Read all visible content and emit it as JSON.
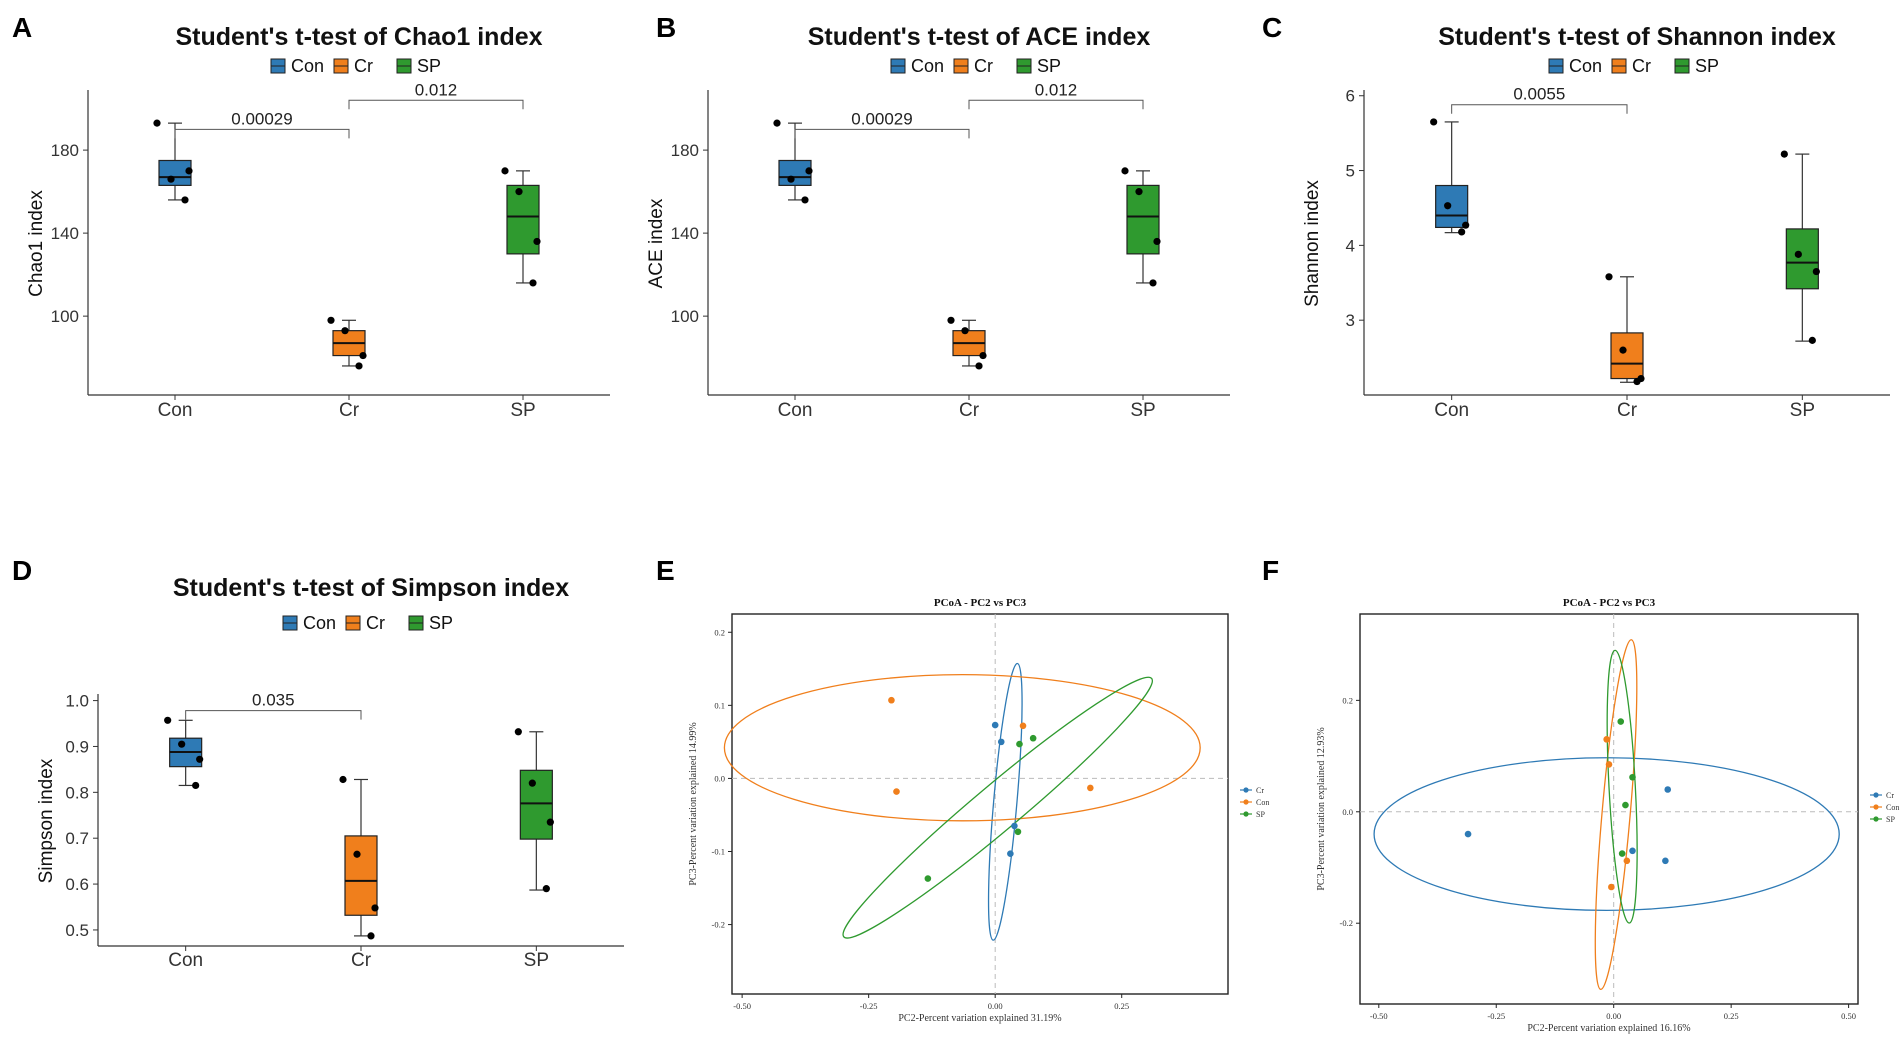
{
  "colors": {
    "Con": "#2e7ab5",
    "Cr": "#f07f1c",
    "SP": "#2f9a2f",
    "axis": "#333333",
    "dash": "#bbbbbb"
  },
  "chart_data": [
    {
      "type": "box",
      "panel": "A",
      "title": "Student's t-test of Chao1 index",
      "ylabel": "Chao1 index",
      "xlabel": "",
      "ylim": [
        62,
        208
      ],
      "yticks": [
        100,
        140,
        180
      ],
      "categories": [
        "Con",
        "Cr",
        "SP"
      ],
      "legend": [
        "Con",
        "Cr",
        "SP"
      ],
      "boxes": [
        {
          "group": "Con",
          "min": 156,
          "q1": 163,
          "median": 167,
          "q3": 175,
          "max": 193
        },
        {
          "group": "Cr",
          "min": 76,
          "q1": 81,
          "median": 87,
          "q3": 93,
          "max": 98
        },
        {
          "group": "SP",
          "min": 116,
          "q1": 130,
          "median": 148,
          "q3": 163,
          "max": 170
        }
      ],
      "points": [
        {
          "group": "Con",
          "values": [
            193,
            166,
            170,
            156
          ]
        },
        {
          "group": "Cr",
          "values": [
            98,
            93,
            81,
            76
          ]
        },
        {
          "group": "SP",
          "values": [
            170,
            160,
            136,
            116
          ]
        }
      ],
      "comparisons": [
        {
          "from": "Con",
          "to": "Cr",
          "label": "0.00029",
          "y": 190
        },
        {
          "from": "Cr",
          "to": "SP",
          "label": "0.012",
          "y": 204
        }
      ]
    },
    {
      "type": "box",
      "panel": "B",
      "title": "Student's t-test of ACE index",
      "ylabel": "ACE index",
      "xlabel": "",
      "ylim": [
        62,
        208
      ],
      "yticks": [
        100,
        140,
        180
      ],
      "categories": [
        "Con",
        "Cr",
        "SP"
      ],
      "legend": [
        "Con",
        "Cr",
        "SP"
      ],
      "boxes": [
        {
          "group": "Con",
          "min": 156,
          "q1": 163,
          "median": 167,
          "q3": 175,
          "max": 193
        },
        {
          "group": "Cr",
          "min": 76,
          "q1": 81,
          "median": 87,
          "q3": 93,
          "max": 98
        },
        {
          "group": "SP",
          "min": 116,
          "q1": 130,
          "median": 148,
          "q3": 163,
          "max": 170
        }
      ],
      "points": [
        {
          "group": "Con",
          "values": [
            193,
            166,
            170,
            156
          ]
        },
        {
          "group": "Cr",
          "values": [
            98,
            93,
            81,
            76
          ]
        },
        {
          "group": "SP",
          "values": [
            170,
            160,
            136,
            116
          ]
        }
      ],
      "comparisons": [
        {
          "from": "Con",
          "to": "Cr",
          "label": "0.00029",
          "y": 190
        },
        {
          "from": "Cr",
          "to": "SP",
          "label": "0.012",
          "y": 204
        }
      ]
    },
    {
      "type": "box",
      "panel": "C",
      "title": "Student's t-test of Shannon index",
      "ylabel": "Shannon index",
      "xlabel": "",
      "ylim": [
        2.0,
        6.05
      ],
      "yticks": [
        3,
        4,
        5,
        6
      ],
      "categories": [
        "Con",
        "Cr",
        "SP"
      ],
      "legend": [
        "Con",
        "Cr",
        "SP"
      ],
      "boxes": [
        {
          "group": "Con",
          "min": 4.17,
          "q1": 4.24,
          "median": 4.4,
          "q3": 4.8,
          "max": 5.65
        },
        {
          "group": "Cr",
          "min": 2.17,
          "q1": 2.22,
          "median": 2.42,
          "q3": 2.83,
          "max": 3.58
        },
        {
          "group": "SP",
          "min": 2.72,
          "q1": 3.42,
          "median": 3.77,
          "q3": 4.22,
          "max": 5.22
        }
      ],
      "points": [
        {
          "group": "Con",
          "values": [
            5.65,
            4.53,
            4.27,
            4.18
          ]
        },
        {
          "group": "Cr",
          "values": [
            3.58,
            2.6,
            2.22,
            2.18
          ]
        },
        {
          "group": "SP",
          "values": [
            5.22,
            3.88,
            3.65,
            2.73
          ]
        }
      ],
      "comparisons": [
        {
          "from": "Con",
          "to": "Cr",
          "label": "0.0055",
          "y": 5.88
        }
      ]
    },
    {
      "type": "box",
      "panel": "D",
      "title": "Student's t-test of Simpson index",
      "ylabel": "Simpson index",
      "xlabel": "",
      "ylim": [
        0.465,
        1.01
      ],
      "yticks": [
        0.5,
        0.6,
        0.7,
        0.8,
        0.9,
        1.0
      ],
      "ytick_labels": [
        "0.5",
        "0.6",
        "0.7",
        "0.8",
        "0.9",
        "1.0"
      ],
      "categories": [
        "Con",
        "Cr",
        "SP"
      ],
      "legend": [
        "Con",
        "Cr",
        "SP"
      ],
      "boxes": [
        {
          "group": "Con",
          "min": 0.815,
          "q1": 0.856,
          "median": 0.888,
          "q3": 0.918,
          "max": 0.957
        },
        {
          "group": "Cr",
          "min": 0.487,
          "q1": 0.532,
          "median": 0.607,
          "q3": 0.705,
          "max": 0.828
        },
        {
          "group": "SP",
          "min": 0.587,
          "q1": 0.698,
          "median": 0.776,
          "q3": 0.848,
          "max": 0.932
        }
      ],
      "points": [
        {
          "group": "Con",
          "values": [
            0.957,
            0.905,
            0.872,
            0.815
          ]
        },
        {
          "group": "Cr",
          "values": [
            0.828,
            0.665,
            0.548,
            0.487
          ]
        },
        {
          "group": "SP",
          "values": [
            0.932,
            0.82,
            0.735,
            0.59
          ]
        }
      ],
      "comparisons": [
        {
          "from": "Con",
          "to": "Cr",
          "label": "0.035",
          "y": 0.978
        }
      ]
    },
    {
      "type": "scatter",
      "panel": "E",
      "title": "PCoA - PC2 vs PC3",
      "xlabel": "PC2-Percent variation explained 31.19%",
      "ylabel": "PC3-Percent variation explained 14.99%",
      "xlim": [
        -0.52,
        0.46
      ],
      "ylim": [
        -0.295,
        0.225
      ],
      "xticks": [
        -0.5,
        -0.25,
        0.0,
        0.25
      ],
      "xtick_labels": [
        "-0.50",
        "-0.25",
        "0.00",
        "0.25"
      ],
      "yticks": [
        -0.2,
        -0.1,
        0.0,
        0.1,
        0.2
      ],
      "ytick_labels": [
        "-0.2",
        "-0.1",
        "0.0",
        "0.1",
        "0.2"
      ],
      "legend": [
        "Cr",
        "Con",
        "SP"
      ],
      "series": [
        {
          "name": "Cr",
          "color_key": "Con",
          "points": [
            [
              0.0,
              0.073
            ],
            [
              0.012,
              0.05
            ],
            [
              0.038,
              -0.065
            ],
            [
              0.03,
              -0.103
            ]
          ]
        },
        {
          "name": "Con",
          "color_key": "Cr",
          "points": [
            [
              -0.205,
              0.107
            ],
            [
              -0.195,
              -0.018
            ],
            [
              0.055,
              0.072
            ],
            [
              0.188,
              -0.013
            ]
          ]
        },
        {
          "name": "SP",
          "color_key": "SP",
          "points": [
            [
              0.048,
              0.047
            ],
            [
              0.075,
              0.055
            ],
            [
              0.045,
              -0.073
            ],
            [
              -0.133,
              -0.137
            ]
          ]
        }
      ],
      "ellipses": [
        {
          "name": "Cr",
          "color_key": "Con",
          "cx": 0.02,
          "cy": -0.032,
          "rx": 0.023,
          "ry": 0.19,
          "angle": 5
        },
        {
          "name": "Con",
          "color_key": "Cr",
          "cx": -0.065,
          "cy": 0.042,
          "rx": 0.47,
          "ry": 0.1,
          "angle": 0
        },
        {
          "name": "SP",
          "color_key": "SP",
          "cx": 0.005,
          "cy": -0.04,
          "rx": 0.045,
          "ry": 0.275,
          "angle": 50
        }
      ]
    },
    {
      "type": "scatter",
      "panel": "F",
      "title": "PCoA - PC2 vs PC3",
      "xlabel": "PC2-Percent variation explained 16.16%",
      "ylabel": "PC3-Percent variation explained 12.93%",
      "xlim": [
        -0.54,
        0.52
      ],
      "ylim": [
        -0.345,
        0.355
      ],
      "xticks": [
        -0.5,
        -0.25,
        0.0,
        0.25,
        0.5
      ],
      "xtick_labels": [
        "-0.50",
        "-0.25",
        "0.00",
        "0.25",
        "0.50"
      ],
      "yticks": [
        -0.2,
        0.0,
        0.2
      ],
      "ytick_labels": [
        "-0.2",
        "0.0",
        "0.2"
      ],
      "legend": [
        "Cr",
        "Con",
        "SP"
      ],
      "series": [
        {
          "name": "Cr",
          "color_key": "Con",
          "points": [
            [
              -0.31,
              -0.04
            ],
            [
              0.115,
              0.04
            ],
            [
              0.11,
              -0.088
            ],
            [
              0.04,
              -0.07
            ]
          ]
        },
        {
          "name": "Con",
          "color_key": "Cr",
          "points": [
            [
              -0.015,
              0.13
            ],
            [
              -0.01,
              0.085
            ],
            [
              0.028,
              -0.088
            ],
            [
              -0.005,
              -0.135
            ]
          ]
        },
        {
          "name": "SP",
          "color_key": "SP",
          "points": [
            [
              0.015,
              0.162
            ],
            [
              0.04,
              0.062
            ],
            [
              0.025,
              0.012
            ],
            [
              0.018,
              -0.075
            ]
          ]
        }
      ],
      "ellipses": [
        {
          "name": "Cr",
          "color_key": "Con",
          "cx": -0.015,
          "cy": -0.04,
          "rx": 0.495,
          "ry": 0.137,
          "angle": 0
        },
        {
          "name": "Con",
          "color_key": "Cr",
          "cx": 0.005,
          "cy": -0.005,
          "rx": 0.03,
          "ry": 0.315,
          "angle": 5
        },
        {
          "name": "SP",
          "color_key": "SP",
          "cx": 0.018,
          "cy": 0.045,
          "rx": 0.028,
          "ry": 0.245,
          "angle": -3
        }
      ]
    }
  ]
}
